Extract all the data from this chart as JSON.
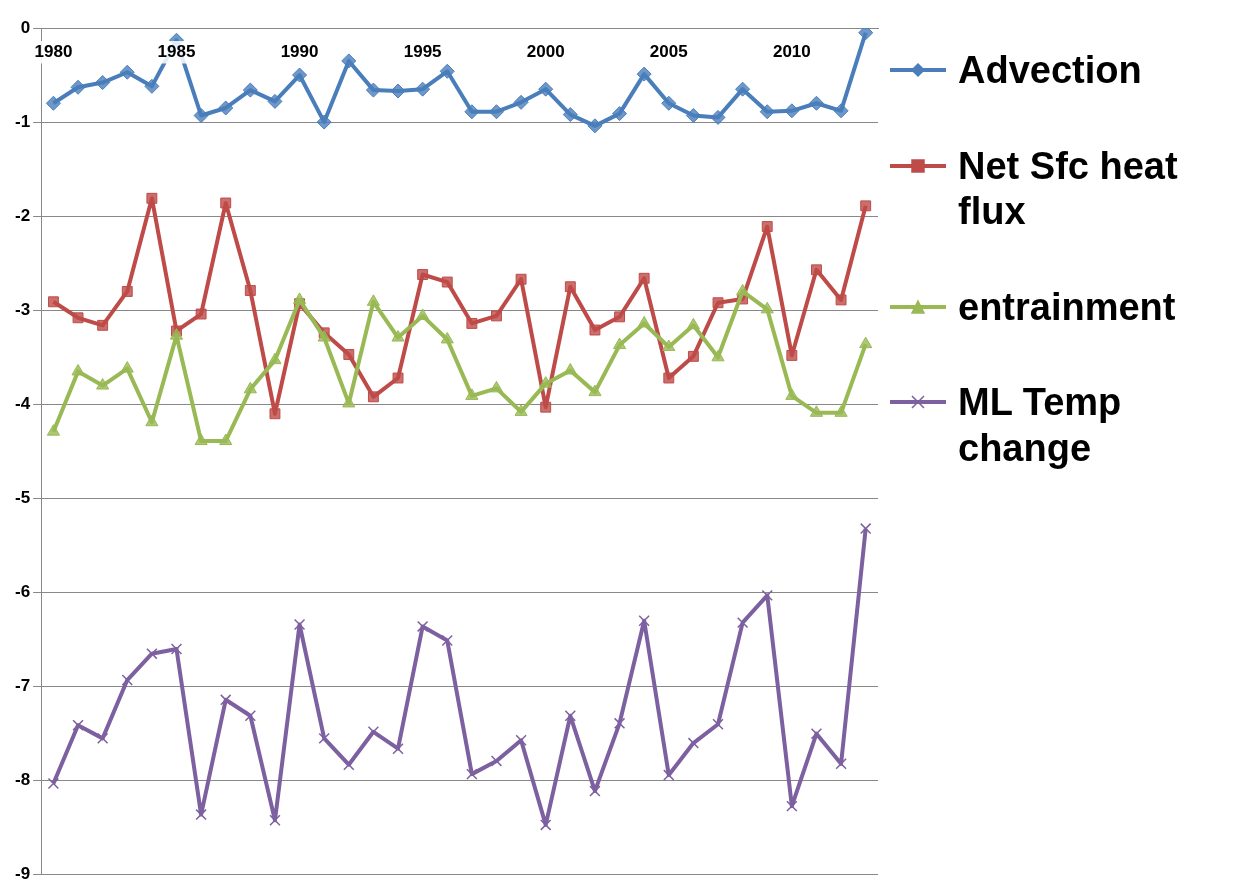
{
  "chart_data": {
    "type": "line",
    "categories": [
      "1980",
      null,
      null,
      null,
      null,
      "1985",
      null,
      null,
      null,
      null,
      "1990",
      null,
      null,
      null,
      null,
      "1995",
      null,
      null,
      null,
      null,
      "2000",
      null,
      null,
      null,
      null,
      "2005",
      null,
      null,
      null,
      null,
      "2010",
      null,
      null,
      null
    ],
    "ylim": [
      -9,
      0
    ],
    "yticks": [
      -9,
      -8,
      -7,
      -6,
      -5,
      -4,
      -3,
      -2,
      -1,
      0
    ],
    "grid": "y",
    "legend": "right",
    "series": [
      {
        "name": "Advection",
        "color": "#4a7ebb",
        "marker": "diamond",
        "values": [
          -0.8,
          -0.63,
          -0.58,
          -0.47,
          -0.62,
          -0.13,
          -0.93,
          -0.85,
          -0.66,
          -0.78,
          -0.5,
          -1.0,
          -0.35,
          -0.66,
          -0.67,
          -0.65,
          -0.46,
          -0.89,
          -0.89,
          -0.79,
          -0.65,
          -0.92,
          -1.04,
          -0.91,
          -0.49,
          -0.8,
          -0.93,
          -0.95,
          -0.65,
          -0.89,
          -0.88,
          -0.8,
          -0.88,
          -0.05
        ]
      },
      {
        "name": "Net Sfc heat flux",
        "color": "#be4b48",
        "marker": "square",
        "values": [
          -2.91,
          -3.08,
          -3.16,
          -2.8,
          -1.81,
          -3.22,
          -3.04,
          -1.86,
          -2.79,
          -4.1,
          -2.93,
          -3.24,
          -3.47,
          -3.92,
          -3.72,
          -2.62,
          -2.7,
          -3.14,
          -3.06,
          -2.67,
          -4.03,
          -2.75,
          -3.21,
          -3.07,
          -2.66,
          -3.72,
          -3.49,
          -2.92,
          -2.88,
          -2.11,
          -3.48,
          -2.57,
          -2.89,
          -1.89
        ]
      },
      {
        "name": "entrainment",
        "color": "#98b954",
        "marker": "triangle",
        "values": [
          -4.29,
          -3.65,
          -3.8,
          -3.62,
          -4.19,
          -3.27,
          -4.39,
          -4.39,
          -3.84,
          -3.53,
          -2.89,
          -3.29,
          -3.99,
          -2.91,
          -3.29,
          -3.06,
          -3.31,
          -3.91,
          -3.83,
          -4.08,
          -3.78,
          -3.64,
          -3.87,
          -3.37,
          -3.14,
          -3.39,
          -3.16,
          -3.5,
          -2.8,
          -2.99,
          -3.91,
          -4.09,
          -4.09,
          -3.36
        ]
      },
      {
        "name": "ML Temp change",
        "color": "#7d60a0",
        "marker": "cross",
        "values": [
          -8.03,
          -7.41,
          -7.55,
          -6.93,
          -6.65,
          -6.6,
          -8.36,
          -7.14,
          -7.31,
          -8.42,
          -6.34,
          -7.55,
          -7.83,
          -7.48,
          -7.66,
          -6.36,
          -6.51,
          -7.93,
          -7.79,
          -7.57,
          -8.47,
          -7.31,
          -8.11,
          -7.39,
          -6.3,
          -7.94,
          -7.6,
          -7.4,
          -6.32,
          -6.03,
          -8.27,
          -7.5,
          -7.82,
          -5.32
        ]
      }
    ]
  }
}
